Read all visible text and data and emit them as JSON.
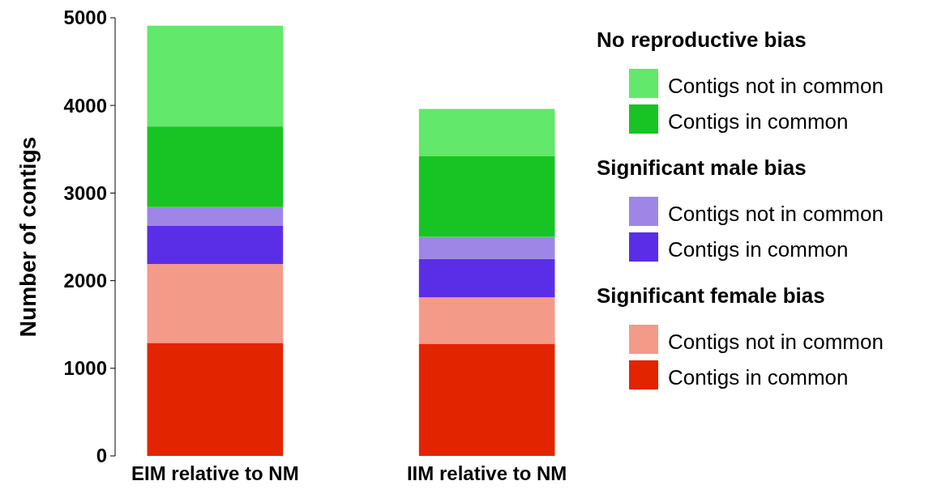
{
  "chart_data": {
    "type": "bar",
    "stacked": true,
    "categories": [
      "EIM relative to NM",
      "IIM relative to NM"
    ],
    "ylabel": "Number of contigs",
    "ylim": [
      0,
      5000
    ],
    "yticks": [
      0,
      1000,
      2000,
      3000,
      4000,
      5000
    ],
    "grid": false,
    "legend": "right",
    "annotations": [
      "No reproductive bias",
      "Significant male bias",
      "Significant female bias"
    ],
    "series": [
      {
        "name": "Contigs in common",
        "color": "#e32400",
        "values": [
          1290,
          1280
        ]
      },
      {
        "name": "Contigs not in common",
        "color": "#f49a88",
        "values": [
          900,
          530
        ]
      },
      {
        "name": "Contigs in common",
        "color": "#5a2ee6",
        "values": [
          440,
          440
        ]
      },
      {
        "name": "Contigs not in common",
        "color": "#9d86e6",
        "values": [
          210,
          250
        ]
      },
      {
        "name": "Contigs in common",
        "color": "#18c424",
        "values": [
          920,
          920
        ]
      },
      {
        "name": "Contigs not in common",
        "color": "#62e86a",
        "values": [
          1150,
          540
        ]
      }
    ]
  }
}
